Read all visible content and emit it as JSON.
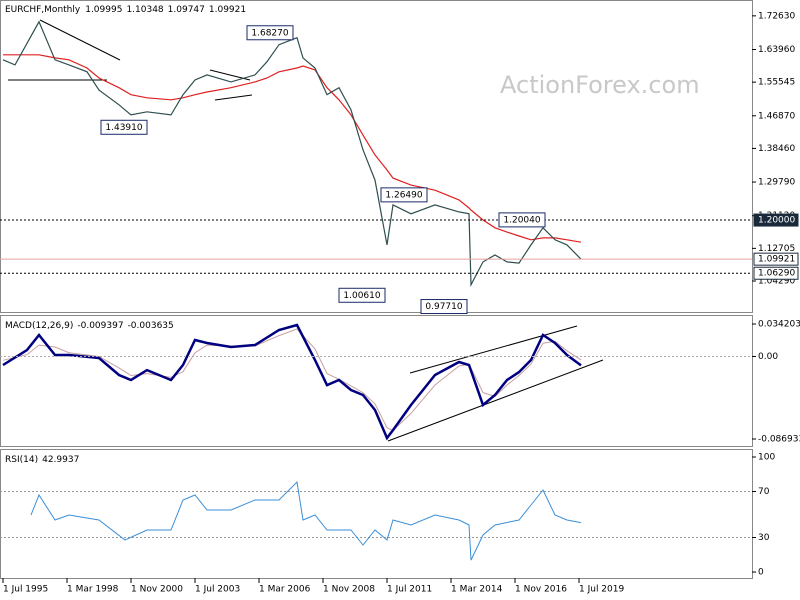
{
  "chart_data": [
    {
      "type": "price",
      "title": "EURCHF,Monthly",
      "ohlc": [
        1.09995,
        1.10348,
        1.09747,
        1.09921
      ],
      "watermark": "ActionForex.com",
      "x": [
        "1995-07",
        "1996-01",
        "1997-01",
        "1997-09",
        "1998-04",
        "1999-01",
        "1999-07",
        "2000-05",
        "2000-11",
        "2001-07",
        "2002-07",
        "2003-01",
        "2003-07",
        "2004-01",
        "2005-01",
        "2006-01",
        "2006-07",
        "2007-01",
        "2007-10",
        "2008-01",
        "2008-07",
        "2009-01",
        "2009-07",
        "2010-01",
        "2010-07",
        "2011-01",
        "2011-07",
        "2011-10",
        "2012-07",
        "2013-07",
        "2014-07",
        "2014-12",
        "2015-01",
        "2015-07",
        "2016-01",
        "2016-07",
        "2017-01",
        "2017-07",
        "2018-01",
        "2018-07",
        "2019-01",
        "2019-08"
      ],
      "series": [
        {
          "color": "#2f4f4f",
          "values": [
            1.613,
            1.6,
            1.711,
            1.613,
            1.6,
            1.582,
            1.535,
            1.497,
            1.471,
            1.479,
            1.471,
            1.523,
            1.561,
            1.574,
            1.556,
            1.574,
            1.608,
            1.652,
            1.67,
            1.618,
            1.592,
            1.523,
            1.541,
            1.484,
            1.381,
            1.303,
            1.136,
            1.239,
            1.216,
            1.239,
            1.221,
            1.216,
            1.033,
            1.092,
            1.11,
            1.092,
            1.089,
            1.136,
            1.18,
            1.149,
            1.136,
            1.099
          ]
        },
        {
          "color": "#e02020",
          "values": [
            1.626,
            1.626,
            1.626,
            1.618,
            1.613,
            1.592,
            1.566,
            1.541,
            1.523,
            1.515,
            1.51,
            1.515,
            1.523,
            1.53,
            1.541,
            1.556,
            1.566,
            1.582,
            1.592,
            1.597,
            1.587,
            1.541,
            1.51,
            1.471,
            1.419,
            1.368,
            1.329,
            1.308,
            1.29,
            1.277,
            1.252,
            1.231,
            1.226,
            1.2,
            1.18,
            1.169,
            1.159,
            1.149,
            1.154,
            1.154,
            1.149,
            1.143
          ]
        }
      ],
      "ylim": [
        0.963,
        1.762
      ],
      "yticks": [
        {
          "value": 1.7263,
          "label": "1.72630"
        },
        {
          "value": 1.6396,
          "label": "1.63960"
        },
        1.55545,
        {
          "value": 1.4687,
          "label": "1.46870"
        },
        {
          "value": 1.3846,
          "label": "1.38460"
        },
        {
          "value": 1.2979,
          "label": "1.29790"
        },
        {
          "value": 1.2112,
          "label": "1.21120"
        },
        1.12705,
        {
          "value": 1.0429,
          "label": "1.04290"
        }
      ],
      "levels": [
        {
          "value": 1.2,
          "label": "1.20000"
        },
        {
          "value": 1.0629,
          "label": "1.06290"
        }
      ],
      "last": 1.09921,
      "annotations": [
        {
          "value": 1.6827,
          "label": "1.68270",
          "x": "2007-10"
        },
        {
          "value": 1.4391,
          "label": "1.43910",
          "x": "2001-09"
        },
        {
          "value": 1.2649,
          "label": "1.26490",
          "x": "2011-09"
        },
        {
          "value": 1.2004,
          "label": "1.20040",
          "x": "2018-04"
        },
        {
          "value": 1.0061,
          "label": "1.00610",
          "x": "2011-08"
        },
        {
          "value": 0.9771,
          "label": "0.97710",
          "x": "2015-01"
        }
      ],
      "xticks": [
        {
          "value": "1995-07",
          "label": "1 Jul 1995"
        },
        {
          "value": "1998-03",
          "label": "1 Mar 1998"
        },
        {
          "value": "2000-11",
          "label": "1 Nov 2000"
        },
        {
          "value": "2003-07",
          "label": "1 Jul 2003"
        },
        {
          "value": "2006-03",
          "label": "1 Mar 2006"
        },
        {
          "value": "2008-11",
          "label": "1 Nov 2008"
        },
        {
          "value": "2011-07",
          "label": "1 Jul 2011"
        },
        {
          "value": "2014-03",
          "label": "1 Mar 2014"
        },
        {
          "value": "2016-11",
          "label": "1 Nov 2016"
        },
        {
          "value": "2019-07",
          "label": "1 Jul 2019"
        }
      ]
    },
    {
      "type": "macd",
      "title": "MACD(12,26,9)",
      "readings": [
        -0.009397,
        -0.003635
      ],
      "x": [
        "1995-07",
        "1996-07",
        "1997-01",
        "1997-09",
        "1998-04",
        "1999-07",
        "2000-05",
        "2000-11",
        "2001-07",
        "2002-07",
        "2003-01",
        "2003-07",
        "2004-01",
        "2005-01",
        "2006-01",
        "2007-01",
        "2007-10",
        "2008-07",
        "2009-01",
        "2009-07",
        "2010-01",
        "2010-07",
        "2011-01",
        "2011-07",
        "2011-10",
        "2012-07",
        "2013-07",
        "2014-07",
        "2014-12",
        "2015-07",
        "2016-01",
        "2016-07",
        "2017-01",
        "2017-07",
        "2018-01",
        "2018-07",
        "2019-01",
        "2019-08"
      ],
      "series": [
        {
          "color": "#c8a0a0",
          "values": [
            -0.004,
            0.002,
            0.012,
            0.01,
            0.004,
            0.0,
            -0.012,
            -0.02,
            -0.018,
            -0.022,
            -0.016,
            0.004,
            0.012,
            0.011,
            0.011,
            0.022,
            0.029,
            0.008,
            -0.018,
            -0.024,
            -0.031,
            -0.038,
            -0.05,
            -0.075,
            -0.078,
            -0.06,
            -0.03,
            -0.01,
            -0.008,
            -0.038,
            -0.042,
            -0.03,
            -0.02,
            -0.008,
            0.014,
            0.016,
            0.006,
            -0.0036
          ]
        },
        {
          "color": "#000080",
          "values": [
            -0.009,
            0.0068,
            0.0226,
            0.0016,
            0.0016,
            -0.0016,
            -0.0195,
            -0.0248,
            -0.0143,
            -0.0248,
            -0.009,
            0.0174,
            0.0142,
            0.01,
            0.0121,
            0.0279,
            0.0332,
            -0.0037,
            -0.0301,
            -0.0248,
            -0.0353,
            -0.0406,
            -0.0564,
            -0.0859,
            -0.0775,
            -0.0511,
            -0.0195,
            -0.0058,
            -0.009,
            -0.0511,
            -0.0406,
            -0.0248,
            -0.0164,
            -0.0037,
            0.0226,
            0.0142,
            0.0016,
            -0.0094
          ]
        }
      ],
      "ylim": [
        -0.0943,
        0.0437
      ],
      "yticks": [
        0.034203,
        {
          "value": 0,
          "label": "0.00"
        },
        -0.086933
      ]
    },
    {
      "type": "rsi",
      "title": "RSI(14)",
      "readings": [
        42.9937
      ],
      "x": [
        "1996-09",
        "1997-01",
        "1997-09",
        "1998-04",
        "1999-07",
        "2000-08",
        "2001-07",
        "2002-07",
        "2003-01",
        "2003-07",
        "2004-01",
        "2005-01",
        "2006-01",
        "2007-01",
        "2007-10",
        "2008-01",
        "2008-07",
        "2009-01",
        "2010-01",
        "2010-07",
        "2011-01",
        "2011-07",
        "2011-10",
        "2012-07",
        "2013-07",
        "2014-07",
        "2014-12",
        "2015-01",
        "2015-07",
        "2016-01",
        "2017-01",
        "2017-07",
        "2018-01",
        "2018-07",
        "2019-01",
        "2019-08"
      ],
      "series": [
        {
          "color": "#3a8fd8",
          "values": [
            49.6,
            67.0,
            45.2,
            49.6,
            45.2,
            27.8,
            36.5,
            36.5,
            62.6,
            67.0,
            53.9,
            53.9,
            62.6,
            62.6,
            78.3,
            45.2,
            49.6,
            36.5,
            36.5,
            23.5,
            36.5,
            27.8,
            45.2,
            40.9,
            49.6,
            45.2,
            40.9,
            10.4,
            32.2,
            40.9,
            45.2,
            58.3,
            71.3,
            49.6,
            45.2,
            42.9937
          ]
        }
      ],
      "ylim": [
        -5.2,
        106.1
      ],
      "yticks": [
        100,
        70,
        30,
        0
      ],
      "levels": [
        70,
        30
      ]
    }
  ]
}
